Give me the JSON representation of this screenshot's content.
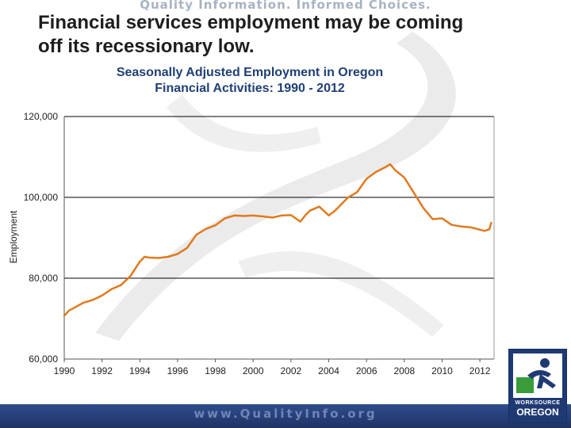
{
  "slide": {
    "tagline": "Quality Information. Informed Choices.",
    "headline_line1": "Financial services employment may be coming",
    "headline_line2": "off its recessionary low.",
    "footer_url": "www.QualityInfo.org",
    "logo": {
      "line1": "WORKSOURCE",
      "line2": "OREGON"
    },
    "colors": {
      "brand_blue": "#1f3a73",
      "footer_text": "#6f86b6",
      "logo_green": "#3a9b3a"
    }
  },
  "chart_data": {
    "type": "line",
    "title_line1": "Seasonally Adjusted Employment in Oregon",
    "title_line2": "Financial Activities:  1990 - 2012",
    "xlabel": "",
    "ylabel": "Employment",
    "xlim": [
      1990,
      2012.75
    ],
    "ylim": [
      60000,
      120000
    ],
    "yticks": [
      60000,
      80000,
      100000,
      120000
    ],
    "ytick_labels": [
      "60,000",
      "80,000",
      "100,000",
      "120,000"
    ],
    "xticks": [
      1990,
      1992,
      1994,
      1996,
      1998,
      2000,
      2002,
      2004,
      2006,
      2008,
      2010,
      2012
    ],
    "xtick_labels": [
      "1990",
      "1992",
      "1994",
      "1996",
      "1998",
      "2000",
      "2002",
      "2004",
      "2006",
      "2008",
      "2010",
      "2012"
    ],
    "grid": "horizontal",
    "line_color": "#e07a1f",
    "series": [
      {
        "x": [
          1990.0,
          1990.25,
          1990.5,
          1991.0,
          1991.5,
          1992.0,
          1992.5,
          1993.0,
          1993.5,
          1994.0,
          1994.25,
          1994.5,
          1995.0,
          1995.5,
          1996.0,
          1996.5,
          1997.0,
          1997.5,
          1998.0,
          1998.5,
          1999.0,
          1999.5,
          2000.0,
          2000.5,
          2001.0,
          2001.5,
          2002.0,
          2002.5,
          2002.75,
          2003.0,
          2003.5,
          2004.0,
          2004.25,
          2004.5,
          2005.0,
          2005.5,
          2006.0,
          2006.5,
          2007.0,
          2007.25,
          2007.5,
          2008.0,
          2008.5,
          2009.0,
          2009.5,
          2010.0,
          2010.5,
          2011.0,
          2011.5,
          2012.0,
          2012.25,
          2012.5,
          2012.6
        ],
        "y": [
          70700,
          72000,
          72600,
          73900,
          74600,
          75700,
          77300,
          78300,
          80500,
          84100,
          85300,
          85100,
          85000,
          85300,
          86000,
          87500,
          90800,
          92200,
          93100,
          94800,
          95500,
          95400,
          95500,
          95300,
          95000,
          95500,
          95600,
          94000,
          95500,
          96700,
          97700,
          95500,
          96400,
          97500,
          99900,
          101300,
          104600,
          106300,
          107500,
          108200,
          106800,
          104900,
          101200,
          97400,
          94600,
          94800,
          93200,
          92800,
          92600,
          92000,
          91700,
          92100,
          93700
        ]
      }
    ]
  }
}
